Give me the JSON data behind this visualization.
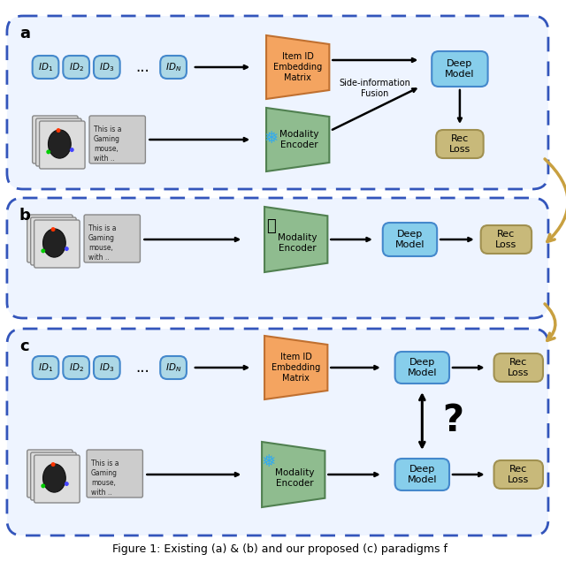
{
  "caption": "Figure 1: Existing (a) & (b) and our proposed (c) paradigms f",
  "bg_color": "#ffffff",
  "panel_border_color": "#3355bb",
  "panel_bg": "#eef4ff",
  "box_id_color": "#add8e6",
  "box_id_border": "#4488cc",
  "box_deep_model_color": "#87ceeb",
  "box_deep_model_border": "#4488cc",
  "box_rec_loss_color": "#c8b97a",
  "box_rec_loss_border": "#a09050",
  "trapezoid_id_embed_color": "#f4a460",
  "trapezoid_id_embed_edge": "#c07030",
  "trapezoid_modality_color": "#8fbc8f",
  "trapezoid_modality_edge": "#508050",
  "arrow_color": "#111111",
  "curved_arrow_color": "#c8a040",
  "label_a": "a",
  "label_b": "b",
  "label_c": "c",
  "text_item_id_embed": "Item ID\nEmbedding\nMatrix",
  "text_modality_encoder": "Modality\nEncoder",
  "text_deep_model": "Deep\nModel",
  "text_rec_loss": "Rec\nLoss",
  "text_side_fusion": "Side-information\nFusion",
  "snowflake": "❅",
  "question": "?"
}
